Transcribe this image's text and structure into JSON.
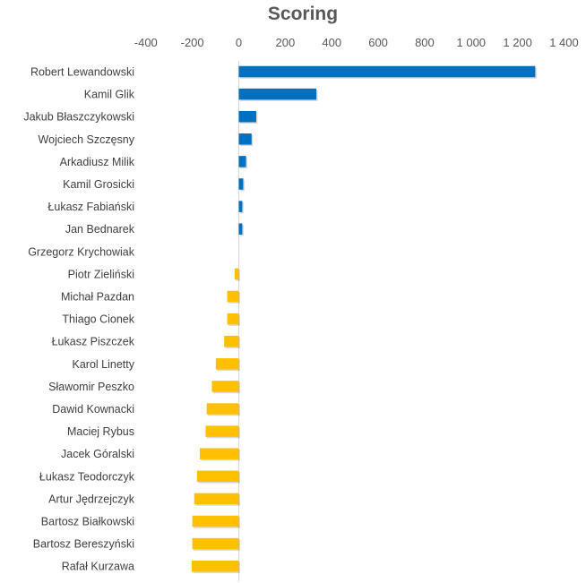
{
  "chart_data": {
    "type": "bar",
    "orientation": "horizontal",
    "title": "Scoring",
    "xlabel": "",
    "ylabel": "",
    "xlim": [
      -400,
      1400
    ],
    "xticks": [
      -400,
      -200,
      0,
      200,
      400,
      600,
      800,
      1000,
      1200,
      1400
    ],
    "xtick_labels": [
      "-400",
      "-200",
      "0",
      "200",
      "400",
      "600",
      "800",
      "1 000",
      "1 200",
      "1 400"
    ],
    "grid": false,
    "categories": [
      "Robert Lewandowski",
      "Kamil Glik",
      "Jakub Błaszczykowski",
      "Wojciech Szczęsny",
      "Arkadiusz Milik",
      "Kamil Grosicki",
      "Łukasz Fabiański",
      "Jan Bednarek",
      "Grzegorz Krychowiak",
      "Piotr Zieliński",
      "Michał Pazdan",
      "Thiago Cionek",
      "Łukasz Piszczek",
      "Karol Linetty",
      "Sławomir Peszko",
      "Dawid Kownacki",
      "Maciej Rybus",
      "Jacek Góralski",
      "Łukasz Teodorczyk",
      "Artur Jędrzejczyk",
      "Bartosz Białkowski",
      "Bartosz Bereszyński",
      "Rafał Kurzawa"
    ],
    "values": [
      1276,
      334,
      75,
      55,
      31,
      19,
      15,
      15,
      0,
      -18,
      -50,
      -50,
      -63,
      -99,
      -116,
      -138,
      -143,
      -168,
      -180,
      -192,
      -200,
      -200,
      -203
    ],
    "colors": {
      "positive": "#0070C0",
      "negative": "#FFC000",
      "axis": "#D9D9D9"
    }
  }
}
